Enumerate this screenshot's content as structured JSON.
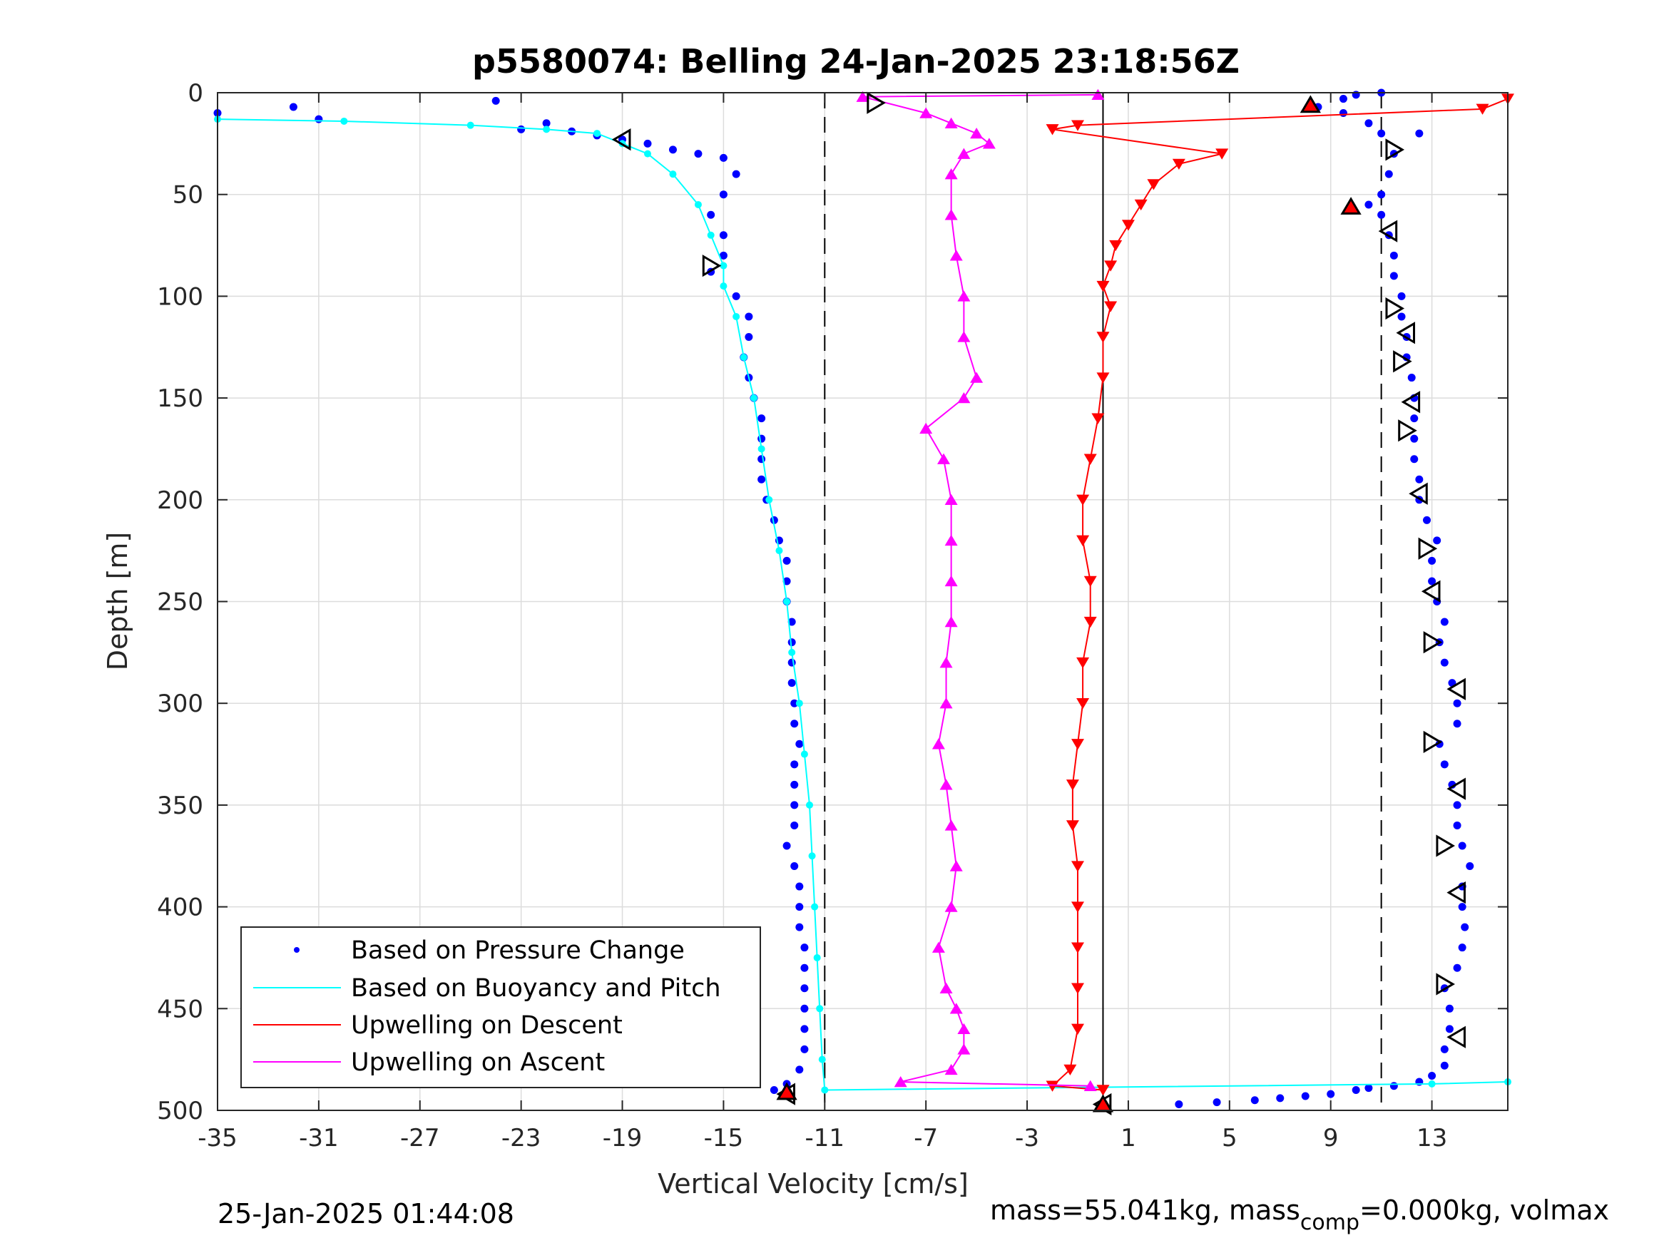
{
  "chart_data": {
    "type": "scatter",
    "title": "p5580074: Belling 24-Jan-2025 23:18:56Z",
    "xlabel": "Vertical Velocity [cm/s]",
    "ylabel": "Depth [m]",
    "xlim": [
      -35,
      16
    ],
    "ylim": [
      500,
      0
    ],
    "y_reversed": true,
    "grid": true,
    "x_ticks": [
      -35,
      -31,
      -27,
      -23,
      -19,
      -15,
      -11,
      -7,
      -3,
      1,
      5,
      9,
      13
    ],
    "y_ticks": [
      0,
      50,
      100,
      150,
      200,
      250,
      300,
      350,
      400,
      450,
      500
    ],
    "reference_lines": [
      {
        "x": -11,
        "style": "dashed"
      },
      {
        "x": 0,
        "style": "solid"
      },
      {
        "x": 11,
        "style": "dashed"
      }
    ],
    "legend": {
      "position": "bottom-left",
      "entries": [
        {
          "label": "Based on Pressure Change",
          "color": "#0000ff",
          "style": "dots"
        },
        {
          "label": "Based on Buoyancy and Pitch",
          "color": "#00ffff",
          "style": "line"
        },
        {
          "label": "Upwelling on Descent",
          "color": "#ff0000",
          "style": "line"
        },
        {
          "label": "Upwelling on Ascent",
          "color": "#ff00ff",
          "style": "line"
        }
      ]
    },
    "series": [
      {
        "name": "Based on Pressure Change (descent)",
        "color": "#0000ff",
        "marker": "dot",
        "points": [
          [
            -35,
            10
          ],
          [
            -32,
            7
          ],
          [
            -31,
            13
          ],
          [
            -24,
            4
          ],
          [
            -23,
            18
          ],
          [
            -22,
            15
          ],
          [
            -21,
            19
          ],
          [
            -20,
            21
          ],
          [
            -19,
            23
          ],
          [
            -18,
            25
          ],
          [
            -17,
            28
          ],
          [
            -16,
            30
          ],
          [
            -15,
            32
          ],
          [
            -14.5,
            40
          ],
          [
            -15,
            50
          ],
          [
            -15.5,
            60
          ],
          [
            -15,
            70
          ],
          [
            -15,
            80
          ],
          [
            -15.5,
            88
          ],
          [
            -14.5,
            100
          ],
          [
            -14,
            110
          ],
          [
            -14,
            120
          ],
          [
            -14.2,
            130
          ],
          [
            -14,
            140
          ],
          [
            -13.8,
            150
          ],
          [
            -13.5,
            160
          ],
          [
            -13.5,
            170
          ],
          [
            -13.5,
            180
          ],
          [
            -13.5,
            190
          ],
          [
            -13.3,
            200
          ],
          [
            -13,
            210
          ],
          [
            -12.8,
            220
          ],
          [
            -12.5,
            230
          ],
          [
            -12.5,
            240
          ],
          [
            -12.5,
            250
          ],
          [
            -12.3,
            260
          ],
          [
            -12.3,
            270
          ],
          [
            -12.3,
            280
          ],
          [
            -12.3,
            290
          ],
          [
            -12.2,
            300
          ],
          [
            -12.2,
            310
          ],
          [
            -12,
            320
          ],
          [
            -12.2,
            330
          ],
          [
            -12.2,
            340
          ],
          [
            -12.2,
            350
          ],
          [
            -12.2,
            360
          ],
          [
            -12.5,
            370
          ],
          [
            -12.2,
            380
          ],
          [
            -12,
            390
          ],
          [
            -12,
            400
          ],
          [
            -12,
            410
          ],
          [
            -11.8,
            420
          ],
          [
            -11.8,
            430
          ],
          [
            -11.8,
            440
          ],
          [
            -11.8,
            450
          ],
          [
            -11.8,
            460
          ],
          [
            -11.8,
            470
          ],
          [
            -12,
            480
          ],
          [
            -12.5,
            487
          ],
          [
            -13,
            490
          ]
        ]
      },
      {
        "name": "Based on Pressure Change (ascent)",
        "color": "#0000ff",
        "marker": "dot",
        "points": [
          [
            3,
            497
          ],
          [
            4.5,
            496
          ],
          [
            6,
            495
          ],
          [
            7,
            494
          ],
          [
            8,
            493
          ],
          [
            9,
            492
          ],
          [
            10,
            490
          ],
          [
            10.5,
            489
          ],
          [
            11.5,
            488
          ],
          [
            12.5,
            486
          ],
          [
            13,
            483
          ],
          [
            13.5,
            478
          ],
          [
            13.5,
            470
          ],
          [
            13.7,
            460
          ],
          [
            13.7,
            450
          ],
          [
            13.5,
            440
          ],
          [
            14,
            430
          ],
          [
            14.2,
            420
          ],
          [
            14.3,
            410
          ],
          [
            14.2,
            400
          ],
          [
            14.2,
            390
          ],
          [
            14.5,
            380
          ],
          [
            14.2,
            370
          ],
          [
            14,
            360
          ],
          [
            14,
            350
          ],
          [
            13.8,
            340
          ],
          [
            13.5,
            330
          ],
          [
            13.3,
            320
          ],
          [
            14,
            310
          ],
          [
            14,
            300
          ],
          [
            13.8,
            290
          ],
          [
            13.5,
            280
          ],
          [
            13.3,
            270
          ],
          [
            13.5,
            260
          ],
          [
            13.2,
            250
          ],
          [
            13,
            240
          ],
          [
            13,
            230
          ],
          [
            13.2,
            220
          ],
          [
            12.8,
            210
          ],
          [
            12.5,
            200
          ],
          [
            12.5,
            190
          ],
          [
            12.3,
            180
          ],
          [
            12.3,
            170
          ],
          [
            12.3,
            160
          ],
          [
            12.3,
            150
          ],
          [
            12.2,
            140
          ],
          [
            12,
            130
          ],
          [
            12,
            120
          ],
          [
            11.8,
            110
          ],
          [
            11.8,
            100
          ],
          [
            11.5,
            90
          ],
          [
            11.5,
            80
          ],
          [
            11.3,
            70
          ],
          [
            11,
            60
          ],
          [
            10.5,
            55
          ],
          [
            11,
            50
          ],
          [
            11.3,
            40
          ],
          [
            11.5,
            30
          ],
          [
            11,
            20
          ],
          [
            10.5,
            15
          ],
          [
            9.5,
            10
          ],
          [
            8.5,
            7
          ],
          [
            9.5,
            3
          ],
          [
            10,
            1
          ],
          [
            11,
            0
          ],
          [
            12.5,
            20
          ]
        ]
      },
      {
        "name": "Based on Buoyancy and Pitch",
        "color": "#00ffff",
        "marker": "dot-line",
        "points": [
          [
            -35,
            13
          ],
          [
            -30,
            14
          ],
          [
            -25,
            16
          ],
          [
            -22,
            18
          ],
          [
            -20,
            20
          ],
          [
            -19,
            25
          ],
          [
            -18,
            30
          ],
          [
            -17,
            40
          ],
          [
            -16,
            55
          ],
          [
            -15.5,
            70
          ],
          [
            -15,
            85
          ],
          [
            -15,
            95
          ],
          [
            -14.5,
            110
          ],
          [
            -14.2,
            130
          ],
          [
            -13.8,
            150
          ],
          [
            -13.5,
            175
          ],
          [
            -13.2,
            200
          ],
          [
            -12.8,
            225
          ],
          [
            -12.5,
            250
          ],
          [
            -12.3,
            275
          ],
          [
            -12,
            300
          ],
          [
            -11.8,
            325
          ],
          [
            -11.6,
            350
          ],
          [
            -11.5,
            375
          ],
          [
            -11.4,
            400
          ],
          [
            -11.3,
            425
          ],
          [
            -11.2,
            450
          ],
          [
            -11.1,
            475
          ],
          [
            -11,
            490
          ],
          [
            13,
            487
          ],
          [
            16,
            486
          ]
        ]
      },
      {
        "name": "Upwelling on Descent",
        "color": "#ff0000",
        "marker": "triangle-down",
        "points": [
          [
            16,
            3
          ],
          [
            15,
            8
          ],
          [
            -1,
            16
          ],
          [
            -2,
            18
          ],
          [
            4.7,
            30
          ],
          [
            3,
            35
          ],
          [
            2,
            45
          ],
          [
            1.5,
            55
          ],
          [
            1,
            65
          ],
          [
            0.5,
            75
          ],
          [
            0.3,
            85
          ],
          [
            0,
            95
          ],
          [
            0.3,
            105
          ],
          [
            0,
            120
          ],
          [
            0,
            140
          ],
          [
            -0.2,
            160
          ],
          [
            -0.5,
            180
          ],
          [
            -0.8,
            200
          ],
          [
            -0.8,
            220
          ],
          [
            -0.5,
            240
          ],
          [
            -0.5,
            260
          ],
          [
            -0.8,
            280
          ],
          [
            -0.8,
            300
          ],
          [
            -1,
            320
          ],
          [
            -1.2,
            340
          ],
          [
            -1.2,
            360
          ],
          [
            -1,
            380
          ],
          [
            -1,
            400
          ],
          [
            -1,
            420
          ],
          [
            -1,
            440
          ],
          [
            -1,
            460
          ],
          [
            -1.3,
            480
          ],
          [
            -2,
            488
          ],
          [
            0,
            490
          ]
        ]
      },
      {
        "name": "Upwelling on Ascent",
        "color": "#ff00ff",
        "marker": "triangle-up",
        "points": [
          [
            -0.5,
            488
          ],
          [
            -8,
            486
          ],
          [
            -6,
            480
          ],
          [
            -5.5,
            470
          ],
          [
            -5.5,
            460
          ],
          [
            -5.8,
            450
          ],
          [
            -6.2,
            440
          ],
          [
            -6.5,
            420
          ],
          [
            -6,
            400
          ],
          [
            -5.8,
            380
          ],
          [
            -6,
            360
          ],
          [
            -6.2,
            340
          ],
          [
            -6.5,
            320
          ],
          [
            -6.2,
            300
          ],
          [
            -6.2,
            280
          ],
          [
            -6,
            260
          ],
          [
            -6,
            240
          ],
          [
            -6,
            220
          ],
          [
            -6,
            200
          ],
          [
            -6.3,
            180
          ],
          [
            -7,
            165
          ],
          [
            -5.5,
            150
          ],
          [
            -5,
            140
          ],
          [
            -5.5,
            120
          ],
          [
            -5.5,
            100
          ],
          [
            -5.8,
            80
          ],
          [
            -6,
            60
          ],
          [
            -6,
            40
          ],
          [
            -5.5,
            30
          ],
          [
            -4.5,
            25
          ],
          [
            -5,
            20
          ],
          [
            -6,
            15
          ],
          [
            -7,
            10
          ],
          [
            -9.5,
            2
          ],
          [
            -0.2,
            1
          ]
        ]
      },
      {
        "name": "Black open triangles",
        "color": "#000000",
        "marker": "triangle-open",
        "points": [
          [
            -19,
            23
          ],
          [
            -15.5,
            85
          ],
          [
            -12.5,
            492
          ],
          [
            -9,
            5
          ],
          [
            0,
            497
          ],
          [
            11.5,
            28
          ],
          [
            11.3,
            68
          ],
          [
            11.5,
            106
          ],
          [
            12,
            118
          ],
          [
            11.8,
            132
          ],
          [
            12.2,
            152
          ],
          [
            12,
            166
          ],
          [
            12.5,
            197
          ],
          [
            12.8,
            224
          ],
          [
            13,
            245
          ],
          [
            13,
            270
          ],
          [
            14,
            293
          ],
          [
            13,
            319
          ],
          [
            14,
            342
          ],
          [
            13.5,
            370
          ],
          [
            14,
            393
          ],
          [
            13.5,
            438
          ],
          [
            14,
            464
          ]
        ]
      },
      {
        "name": "Red filled triangles",
        "color": "#ff0000",
        "marker": "triangle-filled",
        "points": [
          [
            8.2,
            6
          ],
          [
            9.8,
            56
          ],
          [
            -12.5,
            491
          ],
          [
            0,
            497
          ]
        ]
      }
    ]
  },
  "footer": {
    "timestamp": "25-Jan-2025 01:44:08",
    "mass_prefix": "mass=55.041kg, mass",
    "mass_sub": "comp",
    "mass_suffix": "=0.000kg, volmax"
  }
}
